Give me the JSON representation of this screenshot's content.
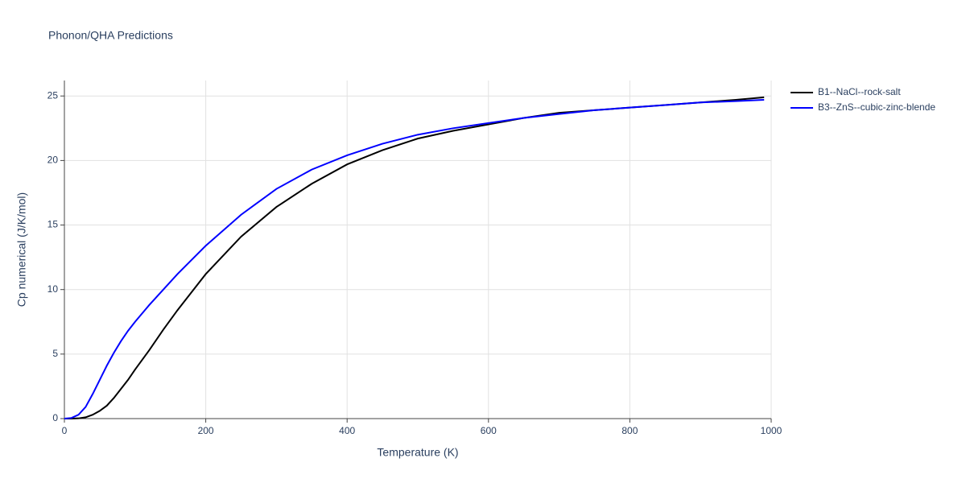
{
  "chart_data": {
    "type": "line",
    "title": "Phonon/QHA Predictions",
    "x_label": "Temperature (K)",
    "y_label": "Cp numerical (J/K/mol)",
    "x": [
      0,
      10,
      20,
      30,
      40,
      50,
      60,
      70,
      80,
      90,
      100,
      120,
      140,
      160,
      180,
      200,
      250,
      300,
      350,
      400,
      450,
      500,
      550,
      600,
      650,
      700,
      750,
      800,
      850,
      900,
      950,
      990
    ],
    "series": [
      {
        "name": "B1--NaCl--rock-salt",
        "color": "#000000",
        "values": [
          0,
          0,
          0.02,
          0.1,
          0.3,
          0.6,
          1.0,
          1.6,
          2.3,
          3.0,
          3.8,
          5.3,
          6.9,
          8.4,
          9.8,
          11.2,
          14.1,
          16.4,
          18.2,
          19.7,
          20.8,
          21.7,
          22.3,
          22.8,
          23.3,
          23.7,
          23.9,
          24.1,
          24.3,
          24.5,
          24.7,
          24.9
        ]
      },
      {
        "name": "B3--ZnS--cubic-zinc-blende",
        "color": "#0000ff",
        "values": [
          0,
          0.05,
          0.3,
          0.9,
          1.9,
          3.0,
          4.1,
          5.1,
          6.0,
          6.8,
          7.5,
          8.8,
          10.0,
          11.2,
          12.3,
          13.4,
          15.8,
          17.8,
          19.3,
          20.4,
          21.3,
          22.0,
          22.5,
          22.9,
          23.3,
          23.6,
          23.9,
          24.1,
          24.3,
          24.5,
          24.6,
          24.7
        ]
      }
    ],
    "xlim": [
      0,
      1000
    ],
    "xticks": [
      0,
      200,
      400,
      600,
      800,
      1000
    ],
    "ylim": [
      0,
      26.2
    ],
    "yticks": [
      0,
      5,
      10,
      15,
      20,
      25
    ],
    "grid": true,
    "legend": "outside-right"
  }
}
